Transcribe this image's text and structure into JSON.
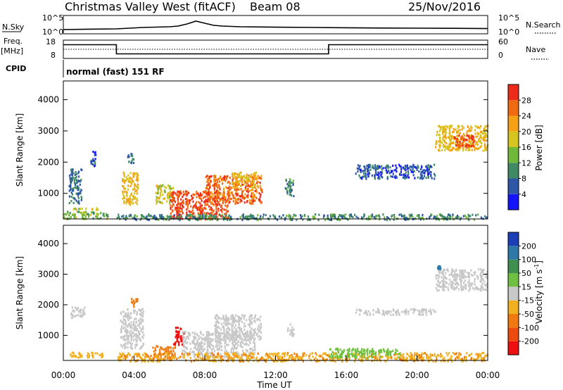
{
  "header": {
    "station": "Christmas Valley West (fitACF)",
    "beam": "Beam 08",
    "date": "25/Nov/2016"
  },
  "nsky_panel": {
    "left_label": "N.Sky",
    "right_label": "N.Search",
    "left_ticks": [
      "10^5",
      "10^0"
    ],
    "right_ticks": [
      "10^5",
      "10^0"
    ]
  },
  "freq_panel": {
    "left_label_1": "Freq.",
    "left_label_2": "[MHz]",
    "right_label": "Nave",
    "left_ticks": [
      "18",
      "8"
    ],
    "right_ticks": [
      "60",
      "0"
    ]
  },
  "cpid": {
    "label": "CPID",
    "text": "normal (fast) 151 RF"
  },
  "x_axis": {
    "title": "Time UT",
    "ticks": [
      "00:00",
      "04:00",
      "08:00",
      "12:00",
      "16:00",
      "20:00",
      "00:00"
    ]
  },
  "panel_y_axis": {
    "title": "Slant Range [km]",
    "ticks": [
      "1000",
      "2000",
      "3000",
      "4000"
    ]
  },
  "power_colorbar": {
    "title": "Power [dB]",
    "ticks": [
      "4",
      "8",
      "12",
      "16",
      "20",
      "24",
      "28"
    ],
    "colors": [
      "#1414ff",
      "#2e57a8",
      "#3f8a64",
      "#6fb83a",
      "#d7c51f",
      "#f5a116",
      "#f06a12",
      "#ee2a1a"
    ]
  },
  "velocity_colorbar": {
    "title": "Velocity [m s",
    "title_sup": "-1",
    "title_end": "]",
    "ticks": [
      "200",
      "100",
      "50",
      "15",
      "-15",
      "-50",
      "-100",
      "-200"
    ],
    "colors": [
      "#1c3fb8",
      "#2e78a8",
      "#3f8f50",
      "#6fc040",
      "#c8c8c8",
      "#f0b020",
      "#f07a10",
      "#ee4a10",
      "#ee1010"
    ]
  },
  "chart_data": [
    {
      "type": "line",
      "name": "nsky",
      "x": [
        0,
        1.5,
        3,
        4.5,
        6,
        6.5,
        7,
        7.5,
        8,
        8.5,
        9,
        10,
        12,
        14,
        16,
        18,
        20,
        22,
        24
      ],
      "y": [
        0.15,
        0.18,
        0.2,
        0.3,
        0.35,
        0.4,
        0.55,
        0.75,
        0.6,
        0.45,
        0.4,
        0.35,
        0.32,
        0.3,
        0.28,
        0.26,
        0.25,
        0.24,
        0.22
      ]
    },
    {
      "type": "line",
      "name": "frequency",
      "x": [
        0,
        3,
        3,
        15,
        15,
        24
      ],
      "y": [
        15.5,
        15.5,
        10.5,
        10.5,
        15.5,
        15.5
      ]
    },
    {
      "type": "heatmap",
      "name": "power",
      "x_range": [
        0,
        24
      ],
      "y_range": [
        180,
        4600
      ],
      "points": [
        {
          "t0": 0.0,
          "t1": 2.5,
          "r0": 200,
          "r1": 450,
          "dB": 14
        },
        {
          "t0": 0.5,
          "t1": 2.0,
          "r0": 500,
          "r1": 560,
          "dB": 18
        },
        {
          "t0": 0.3,
          "t1": 1.0,
          "r0": 700,
          "r1": 1800,
          "dB": 8
        },
        {
          "t0": 1.5,
          "t1": 1.8,
          "r0": 1900,
          "r1": 2400,
          "dB": 6
        },
        {
          "t0": 3.3,
          "t1": 4.2,
          "r0": 650,
          "r1": 1700,
          "dB": 20
        },
        {
          "t0": 3.6,
          "t1": 4.0,
          "r0": 2000,
          "r1": 2300,
          "dB": 8
        },
        {
          "t0": 5.2,
          "t1": 6.2,
          "r0": 700,
          "r1": 1300,
          "dB": 18
        },
        {
          "t0": 6.0,
          "t1": 9.3,
          "r0": 200,
          "r1": 1100,
          "dB": 28
        },
        {
          "t0": 8.0,
          "t1": 11.2,
          "r0": 700,
          "r1": 1600,
          "dB": 26
        },
        {
          "t0": 9.5,
          "t1": 11.0,
          "r0": 1200,
          "r1": 1700,
          "dB": 20
        },
        {
          "t0": 3.0,
          "t1": 24.0,
          "r0": 180,
          "r1": 360,
          "dB": 10
        },
        {
          "t0": 12.5,
          "t1": 13.0,
          "r0": 900,
          "r1": 1500,
          "dB": 10
        },
        {
          "t0": 16.5,
          "t1": 21.0,
          "r0": 1500,
          "r1": 1950,
          "dB": 6
        },
        {
          "t0": 21.0,
          "t1": 24.0,
          "r0": 2400,
          "r1": 3200,
          "dB": 20
        },
        {
          "t0": 22.0,
          "t1": 23.2,
          "r0": 2500,
          "r1": 2900,
          "dB": 28
        }
      ]
    },
    {
      "type": "heatmap",
      "name": "velocity",
      "x_range": [
        0,
        24
      ],
      "y_range": [
        180,
        4600
      ],
      "points": [
        {
          "t0": 0.3,
          "t1": 2.2,
          "r0": 300,
          "r1": 480,
          "v": -40
        },
        {
          "t0": 0.3,
          "t1": 1.2,
          "r0": 1600,
          "r1": 1950,
          "v": 0
        },
        {
          "t0": 3.2,
          "t1": 4.5,
          "r0": 600,
          "r1": 1900,
          "v": 0
        },
        {
          "t0": 3.8,
          "t1": 4.2,
          "r0": 1950,
          "r1": 2250,
          "v": -60
        },
        {
          "t0": 5.0,
          "t1": 6.3,
          "r0": 250,
          "r1": 700,
          "v": -60
        },
        {
          "t0": 6.2,
          "t1": 6.8,
          "r0": 700,
          "r1": 1300,
          "v": -220
        },
        {
          "t0": 6.7,
          "t1": 10.8,
          "r0": 300,
          "r1": 1150,
          "v": 0
        },
        {
          "t0": 8.5,
          "t1": 11.2,
          "r0": 900,
          "r1": 1700,
          "v": 0
        },
        {
          "t0": 3.0,
          "t1": 24.0,
          "r0": 180,
          "r1": 460,
          "v": -45
        },
        {
          "t0": 15.0,
          "t1": 19.0,
          "r0": 300,
          "r1": 600,
          "v": 30
        },
        {
          "t0": 12.6,
          "t1": 13.0,
          "r0": 1000,
          "r1": 1400,
          "v": 0
        },
        {
          "t0": 16.5,
          "t1": 21.0,
          "r0": 1700,
          "r1": 1900,
          "v": 0
        },
        {
          "t0": 21.0,
          "t1": 24.0,
          "r0": 2500,
          "r1": 3200,
          "v": 0
        },
        {
          "t0": 21.1,
          "t1": 21.3,
          "r0": 3200,
          "r1": 3300,
          "v": 150
        }
      ]
    }
  ]
}
